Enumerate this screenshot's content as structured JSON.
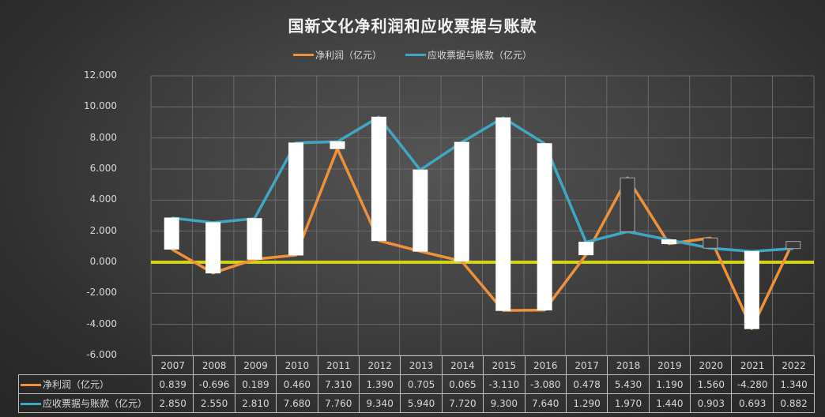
{
  "chart_data": {
    "type": "line",
    "title": "国新文化净利润和应收票据与账款",
    "xlabel": "",
    "ylabel": "",
    "ylim": [
      -6,
      12
    ],
    "yticks": [
      "12.000",
      "10.000",
      "8.000",
      "6.000",
      "4.000",
      "2.000",
      "0.000",
      "-2.000",
      "-4.000",
      "-6.000"
    ],
    "grid": true,
    "legend_position": "top",
    "up_down_bars": true,
    "zero_line_color": "#d4d416",
    "categories": [
      "2007",
      "2008",
      "2009",
      "2010",
      "2011",
      "2012",
      "2013",
      "2014",
      "2015",
      "2016",
      "2017",
      "2018",
      "2019",
      "2020",
      "2021",
      "2022"
    ],
    "series": [
      {
        "name": "净利润（亿元）",
        "color": "#f0913a",
        "values": [
          0.839,
          -0.696,
          0.189,
          0.46,
          7.31,
          1.39,
          0.705,
          0.065,
          -3.11,
          -3.08,
          0.478,
          5.43,
          1.19,
          1.56,
          -4.28,
          1.34
        ],
        "labels": [
          "0.839",
          "-0.696",
          "0.189",
          "0.460",
          "7.310",
          "1.390",
          "0.705",
          "0.065",
          "-3.110",
          "-3.080",
          "0.478",
          "5.430",
          "1.190",
          "1.560",
          "-4.280",
          "1.340"
        ]
      },
      {
        "name": "应收票据与账款（亿元）",
        "color": "#3fa7c4",
        "values": [
          2.85,
          2.55,
          2.81,
          7.68,
          7.76,
          9.34,
          5.94,
          7.72,
          9.3,
          7.64,
          1.29,
          1.97,
          1.44,
          0.903,
          0.693,
          0.882
        ],
        "labels": [
          "2.850",
          "2.550",
          "2.810",
          "7.680",
          "7.760",
          "9.340",
          "5.940",
          "7.720",
          "9.300",
          "7.640",
          "1.290",
          "1.970",
          "1.440",
          "0.903",
          "0.693",
          "0.882"
        ]
      }
    ]
  },
  "legend": {
    "items": [
      {
        "label": "净利润（亿元）",
        "color": "#f0913a"
      },
      {
        "label": "应收票据与账款（亿元）",
        "color": "#3fa7c4"
      }
    ]
  }
}
